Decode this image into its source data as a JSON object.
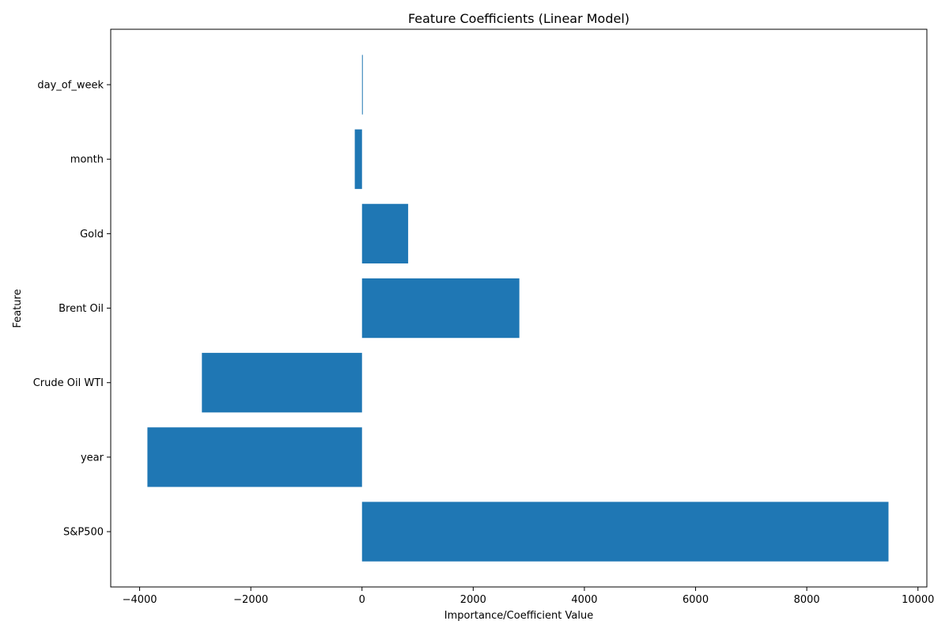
{
  "chart_data": {
    "type": "bar",
    "orientation": "horizontal",
    "title": "Feature Coefficients (Linear Model)",
    "xlabel": "Importance/Coefficient Value",
    "ylabel": "Feature",
    "categories": [
      "S&P500",
      "year",
      "Crude Oil WTI",
      "Brent Oil",
      "Gold",
      "month",
      "day_of_week"
    ],
    "values": [
      9470,
      -3860,
      -2880,
      2830,
      830,
      -130,
      12
    ],
    "xlim": [
      -4520,
      10160
    ],
    "xticks": [
      -4000,
      -2000,
      0,
      2000,
      4000,
      6000,
      8000,
      10000
    ],
    "xtick_labels": [
      "−4000",
      "−2000",
      "0",
      "2000",
      "4000",
      "6000",
      "8000",
      "10000"
    ],
    "bar_color": "#1f77b4",
    "grid": false,
    "legend": "none"
  }
}
